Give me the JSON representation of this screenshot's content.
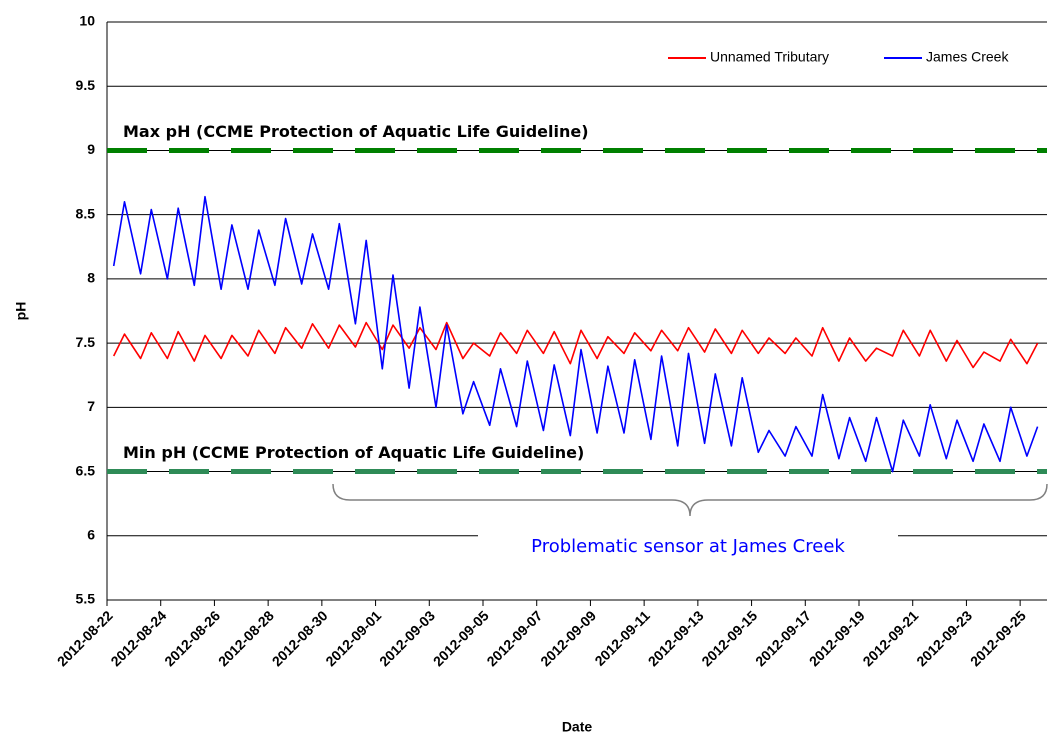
{
  "chart_data": {
    "type": "line",
    "y_label": "pH",
    "x_label": "Date",
    "x": [
      "2012-08-22",
      "2012-08-22",
      "2012-08-23",
      "2012-08-23",
      "2012-08-24",
      "2012-08-24",
      "2012-08-25",
      "2012-08-25",
      "2012-08-26",
      "2012-08-26",
      "2012-08-27",
      "2012-08-27",
      "2012-08-28",
      "2012-08-28",
      "2012-08-29",
      "2012-08-29",
      "2012-08-30",
      "2012-08-30",
      "2012-08-31",
      "2012-08-31",
      "2012-09-01",
      "2012-09-01",
      "2012-09-02",
      "2012-09-02",
      "2012-09-03",
      "2012-09-03",
      "2012-09-04",
      "2012-09-04",
      "2012-09-05",
      "2012-09-05",
      "2012-09-06",
      "2012-09-06",
      "2012-09-07",
      "2012-09-07",
      "2012-09-08",
      "2012-09-08",
      "2012-09-09",
      "2012-09-09",
      "2012-09-10",
      "2012-09-10",
      "2012-09-11",
      "2012-09-11",
      "2012-09-12",
      "2012-09-12",
      "2012-09-13",
      "2012-09-13",
      "2012-09-14",
      "2012-09-14",
      "2012-09-15",
      "2012-09-15",
      "2012-09-16",
      "2012-09-16",
      "2012-09-17",
      "2012-09-17",
      "2012-09-18",
      "2012-09-18",
      "2012-09-19",
      "2012-09-19",
      "2012-09-20",
      "2012-09-20",
      "2012-09-21",
      "2012-09-21",
      "2012-09-22",
      "2012-09-22",
      "2012-09-23",
      "2012-09-23",
      "2012-09-24",
      "2012-09-24",
      "2012-09-25",
      "2012-09-25"
    ],
    "series": [
      {
        "name": "Unnamed Tributary",
        "color": "#ff0000",
        "values": [
          7.4,
          7.57,
          7.38,
          7.58,
          7.38,
          7.59,
          7.36,
          7.56,
          7.38,
          7.56,
          7.4,
          7.6,
          7.42,
          7.62,
          7.46,
          7.65,
          7.46,
          7.64,
          7.47,
          7.66,
          7.45,
          7.64,
          7.46,
          7.62,
          7.45,
          7.66,
          7.38,
          7.5,
          7.4,
          7.58,
          7.42,
          7.6,
          7.42,
          7.59,
          7.34,
          7.6,
          7.38,
          7.55,
          7.42,
          7.58,
          7.44,
          7.6,
          7.44,
          7.62,
          7.43,
          7.61,
          7.42,
          7.6,
          7.42,
          7.54,
          7.42,
          7.54,
          7.4,
          7.62,
          7.36,
          7.54,
          7.36,
          7.46,
          7.4,
          7.6,
          7.4,
          7.6,
          7.36,
          7.52,
          7.31,
          7.43,
          7.36,
          7.53,
          7.34,
          7.5
        ]
      },
      {
        "name": "James Creek",
        "color": "#0000ff",
        "values": [
          8.1,
          8.6,
          8.04,
          8.54,
          8.0,
          8.55,
          7.95,
          8.64,
          7.92,
          8.42,
          7.92,
          8.38,
          7.95,
          8.47,
          7.96,
          8.35,
          7.92,
          8.43,
          7.65,
          8.3,
          7.3,
          8.03,
          7.15,
          7.78,
          7.0,
          7.64,
          6.95,
          7.2,
          6.86,
          7.3,
          6.85,
          7.36,
          6.82,
          7.33,
          6.78,
          7.45,
          6.8,
          7.32,
          6.8,
          7.37,
          6.75,
          7.4,
          6.7,
          7.42,
          6.72,
          7.26,
          6.7,
          7.23,
          6.65,
          6.82,
          6.62,
          6.85,
          6.62,
          7.1,
          6.6,
          6.92,
          6.58,
          6.92,
          6.5,
          6.9,
          6.62,
          7.02,
          6.6,
          6.9,
          6.58,
          6.87,
          6.58,
          7.0,
          6.62,
          6.85
        ]
      }
    ],
    "xlim": [
      "2012-08-22",
      "2012-09-26"
    ],
    "xticks": [
      "2012-08-22",
      "2012-08-24",
      "2012-08-26",
      "2012-08-28",
      "2012-08-30",
      "2012-09-01",
      "2012-09-03",
      "2012-09-05",
      "2012-09-07",
      "2012-09-09",
      "2012-09-11",
      "2012-09-13",
      "2012-09-15",
      "2012-09-17",
      "2012-09-19",
      "2012-09-21",
      "2012-09-23",
      "2012-09-25"
    ],
    "ylim": [
      5.5,
      10
    ],
    "yticks": [
      5.5,
      6,
      6.5,
      7,
      7.5,
      8,
      8.5,
      9,
      9.5,
      10
    ],
    "grid": true,
    "legend": "top-right",
    "reference_lines": [
      {
        "value": 9,
        "label": "Max pH (CCME Protection of Aquatic Life Guideline)",
        "color": "#008000"
      },
      {
        "value": 6.5,
        "label": "Min pH (CCME Protection of Aquatic Life Guideline)",
        "color": "#2e8b57"
      }
    ],
    "annotation": "Problematic sensor at James Creek"
  }
}
